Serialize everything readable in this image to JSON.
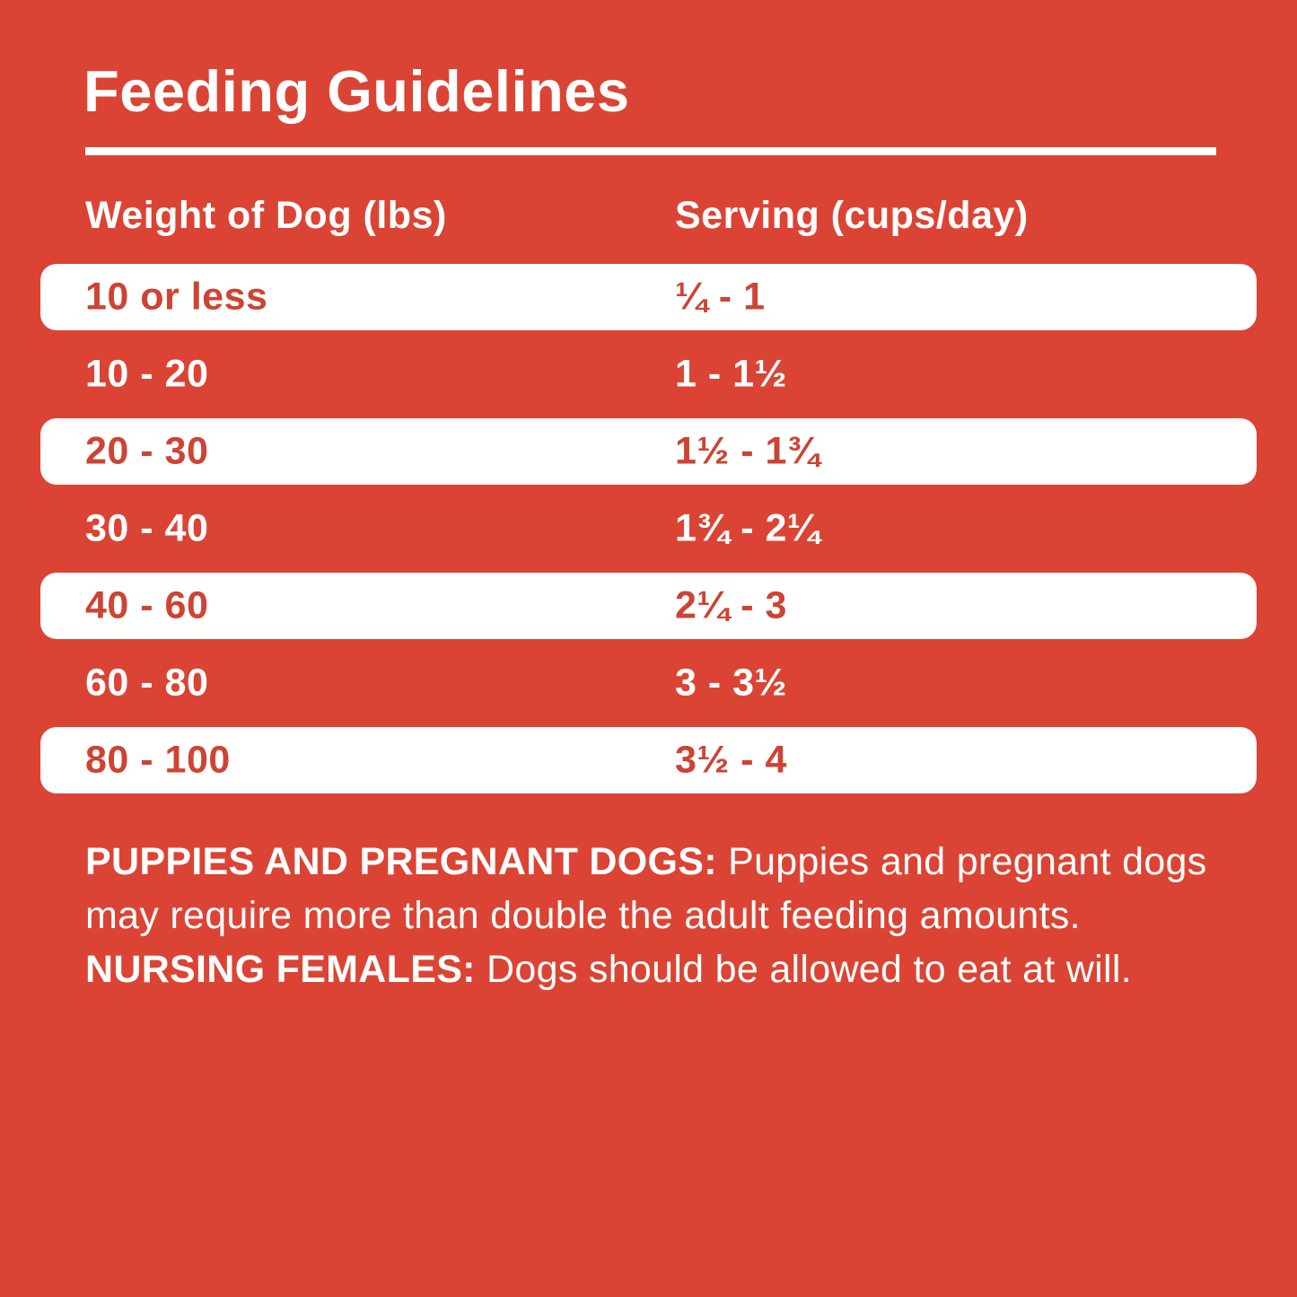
{
  "colors": {
    "background_red": "#DB4434",
    "row_text_red": "#CE4334",
    "text_white": "#FFFFFF"
  },
  "title": "Feeding Guidelines",
  "table": {
    "headers": [
      "Weight of Dog (lbs)",
      "Serving (cups/day)"
    ],
    "rows": [
      {
        "weight": "10 or less",
        "serving": "¼ - 1"
      },
      {
        "weight": "10 - 20",
        "serving": "1 - 1½"
      },
      {
        "weight": "20 - 30",
        "serving": "1½ - 1¾"
      },
      {
        "weight": "30 - 40",
        "serving": "1¾ - 2¼"
      },
      {
        "weight": "40 - 60",
        "serving": "2¼ - 3"
      },
      {
        "weight": "60 - 80",
        "serving": "3 - 3½"
      },
      {
        "weight": "80 - 100",
        "serving": "3½ - 4"
      }
    ]
  },
  "footnote": {
    "bold_puppies": "PUPPIES AND PREGNANT DOGS:",
    "text_puppies": " Puppies and pregnant dogs may require more than double the adult feeding amounts. ",
    "bold_nursing": "NURSING FEMALES:",
    "text_nursing": " Dogs should be allowed to eat at will."
  }
}
